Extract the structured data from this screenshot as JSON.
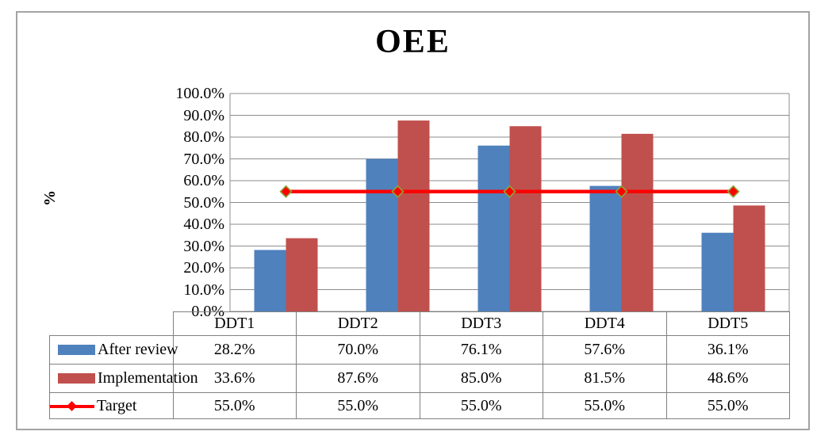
{
  "chart": {
    "title": "OEE",
    "y_axis_title": "%",
    "y_tick_labels": [
      "100.0%",
      "90.0%",
      "80.0%",
      "70.0%",
      "60.0%",
      "50.0%",
      "40.0%",
      "30.0%",
      "20.0%",
      "10.0%",
      "0.0%"
    ],
    "gridline_color": "#8C8C8C",
    "table_border_color": "#808080",
    "frame_border_color": "#A3A3A3"
  },
  "chart_data": {
    "type": "bar",
    "title": "OEE",
    "xlabel": "",
    "ylabel": "%",
    "ylim": [
      0,
      100
    ],
    "ytick_step": 10,
    "grid": true,
    "legend_position": "left-of-data-table",
    "categories": [
      "DDT1",
      "DDT2",
      "DDT3",
      "DDT4",
      "DDT5"
    ],
    "series": [
      {
        "name": "After review",
        "type": "bar",
        "color": "#4F81BD",
        "values": [
          28.2,
          70.0,
          76.1,
          57.6,
          36.1
        ],
        "display_values": [
          "28.2%",
          "70.0%",
          "76.1%",
          "57.6%",
          "36.1%"
        ]
      },
      {
        "name": "Implementation",
        "type": "bar",
        "color": "#C0504D",
        "values": [
          33.6,
          87.6,
          85.0,
          81.5,
          48.6
        ],
        "display_values": [
          "33.6%",
          "87.6%",
          "85.0%",
          "81.5%",
          "48.6%"
        ]
      },
      {
        "name": "Target",
        "type": "line",
        "color": "#FF0000",
        "marker": "diamond",
        "marker_fill": "#FF0000",
        "marker_outline": "#8EA238",
        "values": [
          55.0,
          55.0,
          55.0,
          55.0,
          55.0
        ],
        "display_values": [
          "55.0%",
          "55.0%",
          "55.0%",
          "55.0%",
          "55.0%"
        ]
      }
    ]
  }
}
